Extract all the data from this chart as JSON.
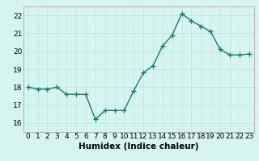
{
  "x": [
    0,
    1,
    2,
    3,
    4,
    5,
    6,
    7,
    8,
    9,
    10,
    11,
    12,
    13,
    14,
    15,
    16,
    17,
    18,
    19,
    20,
    21,
    22,
    23
  ],
  "y": [
    18.0,
    17.9,
    17.9,
    18.0,
    17.6,
    17.6,
    17.6,
    16.2,
    16.7,
    16.7,
    16.7,
    17.8,
    18.8,
    19.2,
    20.3,
    20.9,
    22.1,
    21.7,
    21.4,
    21.1,
    20.1,
    19.8,
    19.8,
    19.85
  ],
  "line_color": "#1a7a6e",
  "marker": "D",
  "marker_size": 2.5,
  "bg_color": "#d6f5f0",
  "grid_color": "#c0e8e2",
  "xlabel": "Humidex (Indice chaleur)",
  "ylim": [
    15.5,
    22.5
  ],
  "xlim": [
    -0.5,
    23.5
  ],
  "yticks": [
    16,
    17,
    18,
    19,
    20,
    21,
    22
  ],
  "xticks": [
    0,
    1,
    2,
    3,
    4,
    5,
    6,
    7,
    8,
    9,
    10,
    11,
    12,
    13,
    14,
    15,
    16,
    17,
    18,
    19,
    20,
    21,
    22,
    23
  ],
  "xtick_labels": [
    "0",
    "1",
    "2",
    "3",
    "4",
    "5",
    "6",
    "7",
    "8",
    "9",
    "10",
    "11",
    "12",
    "13",
    "14",
    "15",
    "16",
    "17",
    "18",
    "19",
    "20",
    "21",
    "22",
    "23"
  ],
  "tick_fontsize": 6.5,
  "xlabel_fontsize": 7.5
}
